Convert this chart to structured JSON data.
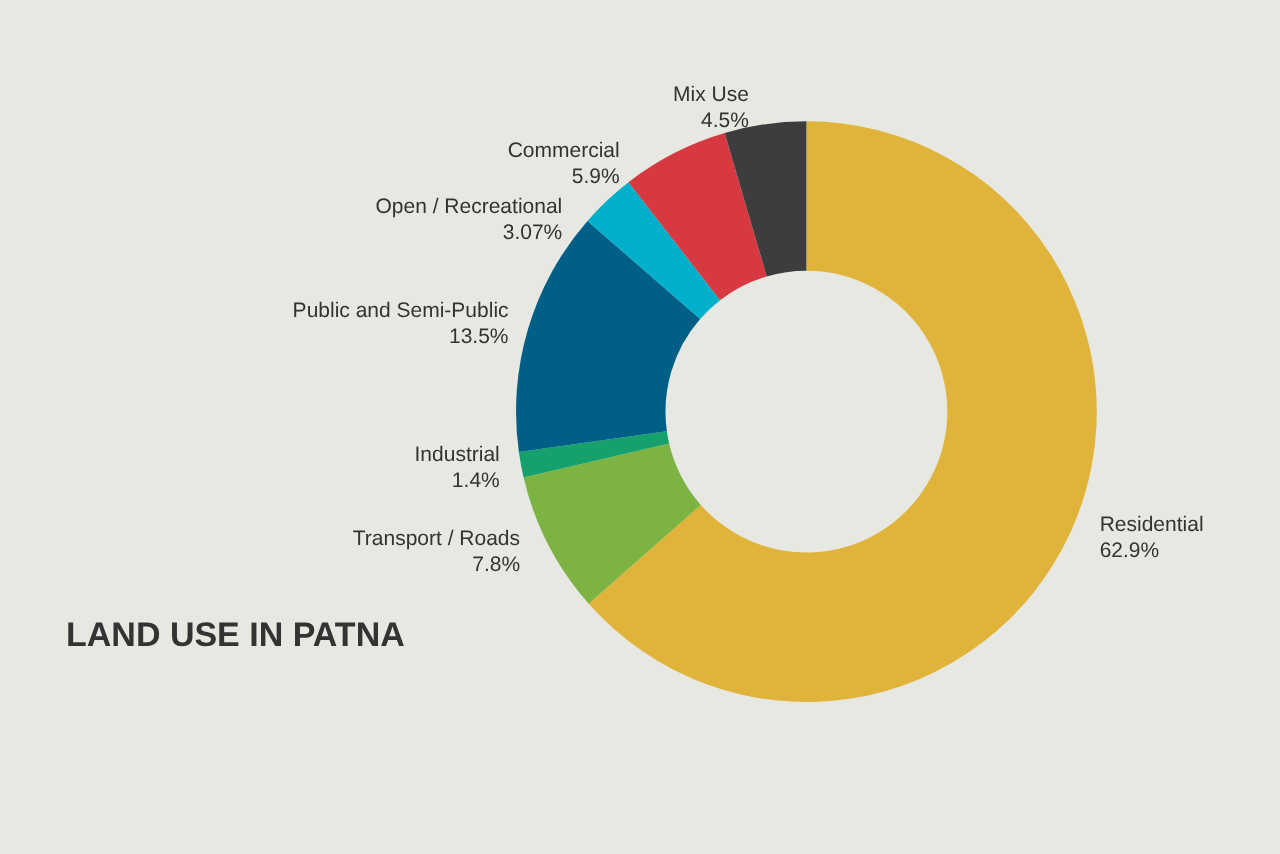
{
  "chart_data": {
    "type": "donut",
    "title": "LAND USE IN PATNA",
    "categories": [
      "Residential",
      "Transport / Roads",
      "Industrial",
      "Public and Semi-Public",
      "Open / Recreational",
      "Commercial",
      "Mix Use"
    ],
    "values": [
      62.9,
      7.8,
      1.4,
      13.5,
      3.07,
      5.9,
      4.5
    ],
    "value_labels": [
      "62.9%",
      "7.8%",
      "1.4%",
      "13.5%",
      "3.07%",
      "5.9%",
      "4.5%"
    ],
    "colors": [
      "#e0b43a",
      "#7cb342",
      "#16a06c",
      "#005f86",
      "#00afc9",
      "#d6393f",
      "#3d3d3d"
    ],
    "legend": false
  }
}
